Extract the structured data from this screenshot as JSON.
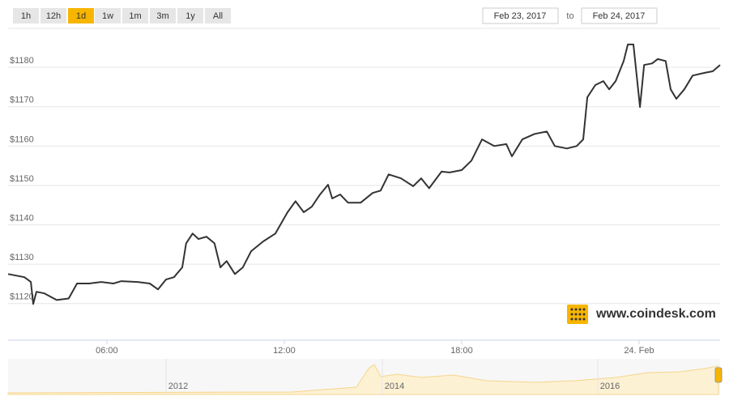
{
  "range_buttons": [
    "1h",
    "12h",
    "1d",
    "1w",
    "1m",
    "3m",
    "1y",
    "All"
  ],
  "active_button": "1d",
  "date_from": "Feb 23, 2017",
  "date_separator": "to",
  "date_to": "Feb 24, 2017",
  "watermark": "www.coindesk.com",
  "navigator_labels": [
    "2012",
    "2014",
    "2016"
  ],
  "chart_data": {
    "type": "line",
    "color": "#333333",
    "x": [
      2.66,
      3.21,
      3.43,
      3.51,
      3.62,
      3.89,
      4.3,
      4.71,
      4.99,
      5.4,
      5.81,
      6.22,
      6.49,
      7.04,
      7.45,
      7.73,
      8.0,
      8.27,
      8.55,
      8.68,
      8.9,
      9.1,
      9.37,
      9.64,
      9.84,
      10.05,
      10.33,
      10.6,
      10.88,
      11.29,
      11.7,
      12.11,
      12.38,
      12.66,
      12.93,
      13.21,
      13.48,
      13.62,
      13.89,
      14.16,
      14.58,
      14.99,
      15.26,
      15.53,
      15.95,
      16.36,
      16.63,
      16.9,
      17.32,
      17.59,
      18.0,
      18.33,
      18.69,
      19.1,
      19.51,
      19.7,
      20.05,
      20.47,
      20.88,
      21.15,
      21.56,
      21.89,
      22.11,
      22.25,
      22.52,
      22.79,
      22.99,
      23.21,
      23.48,
      23.62,
      23.81,
      24.03,
      24.17,
      24.44,
      24.63,
      24.9,
      25.07,
      25.26,
      25.53,
      25.81,
      26.22,
      26.49,
      26.74
    ],
    "values": [
      1127.5,
      1126.7,
      1125.5,
      1119.9,
      1123.0,
      1122.6,
      1120.9,
      1121.3,
      1125.1,
      1125.1,
      1125.5,
      1125.1,
      1125.7,
      1125.5,
      1125.1,
      1123.6,
      1126.1,
      1126.7,
      1129.2,
      1135.3,
      1137.8,
      1136.4,
      1137.0,
      1135.3,
      1129.2,
      1130.8,
      1127.5,
      1129.2,
      1133.3,
      1135.8,
      1137.8,
      1143.2,
      1146.0,
      1143.2,
      1144.6,
      1147.7,
      1150.2,
      1146.7,
      1147.7,
      1145.6,
      1145.6,
      1148.1,
      1148.7,
      1152.8,
      1151.8,
      1149.8,
      1151.8,
      1149.3,
      1153.5,
      1153.3,
      1153.9,
      1156.3,
      1161.7,
      1160.0,
      1160.5,
      1157.4,
      1161.7,
      1163.1,
      1163.7,
      1160.0,
      1159.4,
      1160.0,
      1161.7,
      1172.4,
      1175.5,
      1176.5,
      1174.4,
      1176.5,
      1181.6,
      1185.8,
      1185.8,
      1169.9,
      1180.6,
      1181.0,
      1182.1,
      1181.6,
      1174.4,
      1172.0,
      1174.4,
      1177.9,
      1178.6,
      1179.0,
      1180.6
    ],
    "xlim": [
      2.66,
      26.74
    ],
    "xticks": [
      {
        "value": 6,
        "label": "06:00"
      },
      {
        "value": 12,
        "label": "12:00"
      },
      {
        "value": 18,
        "label": "18:00"
      },
      {
        "value": 24,
        "label": "24. Feb"
      }
    ],
    "ylim": [
      1110.7,
      1189.9
    ],
    "yticks": [
      {
        "value": 1120,
        "label": "$1120"
      },
      {
        "value": 1130,
        "label": "$1130"
      },
      {
        "value": 1140,
        "label": "$1140"
      },
      {
        "value": 1150,
        "label": "$1150"
      },
      {
        "value": 1160,
        "label": "$1160"
      },
      {
        "value": 1170,
        "label": "$1170"
      },
      {
        "value": 1180,
        "label": "$1180"
      }
    ],
    "grid": true
  }
}
